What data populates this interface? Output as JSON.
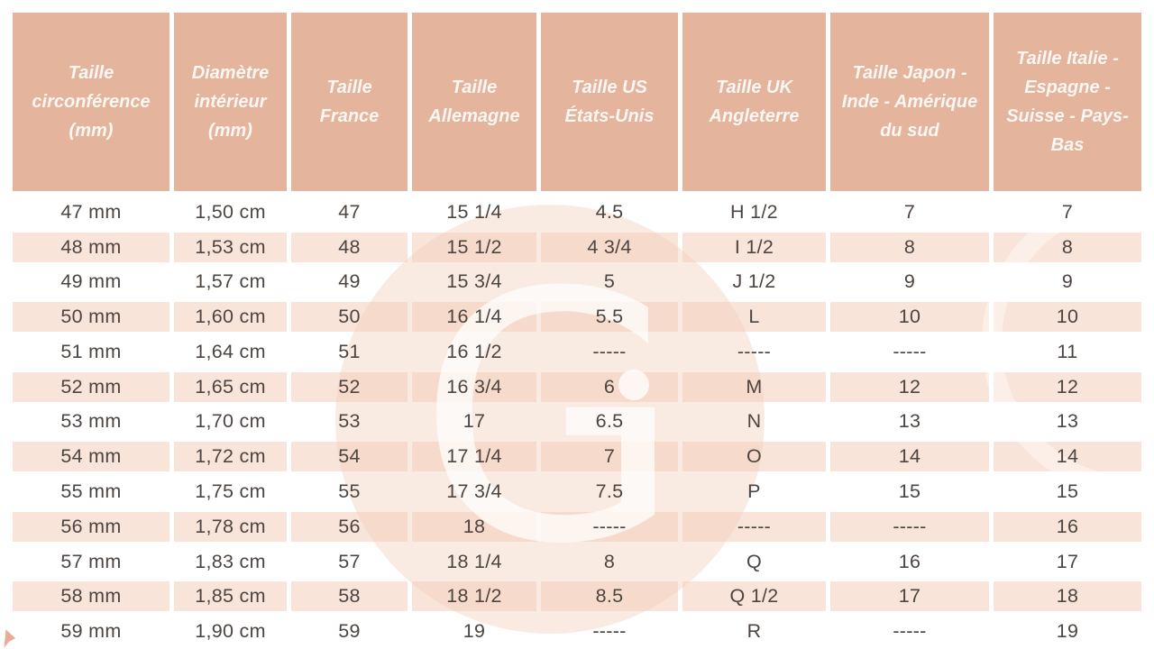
{
  "chart_data": {
    "type": "table",
    "columns": [
      "Taille circonférence (mm)",
      "Diamètre intérieur (mm)",
      "Taille France",
      "Taille Allemagne",
      "Taille US États-Unis",
      "Taille UK Angleterre",
      "Taille Japon - Inde - Amérique du sud",
      "Taille Italie - Espagne - Suisse - Pays-Bas"
    ],
    "rows": [
      [
        "47 mm",
        "1,50 cm",
        "47",
        "15 1/4",
        "4.5",
        "H 1/2",
        "7",
        "7"
      ],
      [
        "48 mm",
        "1,53 cm",
        "48",
        "15 1/2",
        "4 3/4",
        "I 1/2",
        "8",
        "8"
      ],
      [
        "49 mm",
        "1,57 cm",
        "49",
        "15 3/4",
        "5",
        "J 1/2",
        "9",
        "9"
      ],
      [
        "50 mm",
        "1,60 cm",
        "50",
        "16 1/4",
        "5.5",
        "L",
        "10",
        "10"
      ],
      [
        "51 mm",
        "1,64 cm",
        "51",
        "16 1/2",
        "-----",
        "-----",
        "-----",
        "11"
      ],
      [
        "52 mm",
        "1,65 cm",
        "52",
        "16 3/4",
        "6",
        "M",
        "12",
        "12"
      ],
      [
        "53 mm",
        "1,70 cm",
        "53",
        "17",
        "6.5",
        "N",
        "13",
        "13"
      ],
      [
        "54 mm",
        "1,72 cm",
        "54",
        "17 1/4",
        "7",
        "O",
        "14",
        "14"
      ],
      [
        "55 mm",
        "1,75 cm",
        "55",
        "17 3/4",
        "7.5",
        "P",
        "15",
        "15"
      ],
      [
        "56 mm",
        "1,78 cm",
        "56",
        "18",
        "-----",
        "-----",
        "-----",
        "16"
      ],
      [
        "57 mm",
        "1,83 cm",
        "57",
        "18 1/4",
        "8",
        "Q",
        "16",
        "17"
      ],
      [
        "58 mm",
        "1,85 cm",
        "58",
        "18 1/2",
        "8.5",
        "Q 1/2",
        "17",
        "18"
      ],
      [
        "59 mm",
        "1,90 cm",
        "59",
        "19",
        "-----",
        "R",
        "-----",
        "19"
      ]
    ],
    "title": "",
    "legend": [],
    "grid": "banded-rows",
    "row_banding_start": "white"
  },
  "watermark": {
    "letter": "G"
  },
  "colors": {
    "header_bg": "#e4b49c",
    "row_alt_bg": "#f8e4d9",
    "row_bg": "#ffffff",
    "body_text": "#4c4541",
    "header_text": "#fbf7f2",
    "watermark_fill": "#f2cfba",
    "watermark_glyph": "#ffffff",
    "corner_mark": "#e79e85"
  }
}
